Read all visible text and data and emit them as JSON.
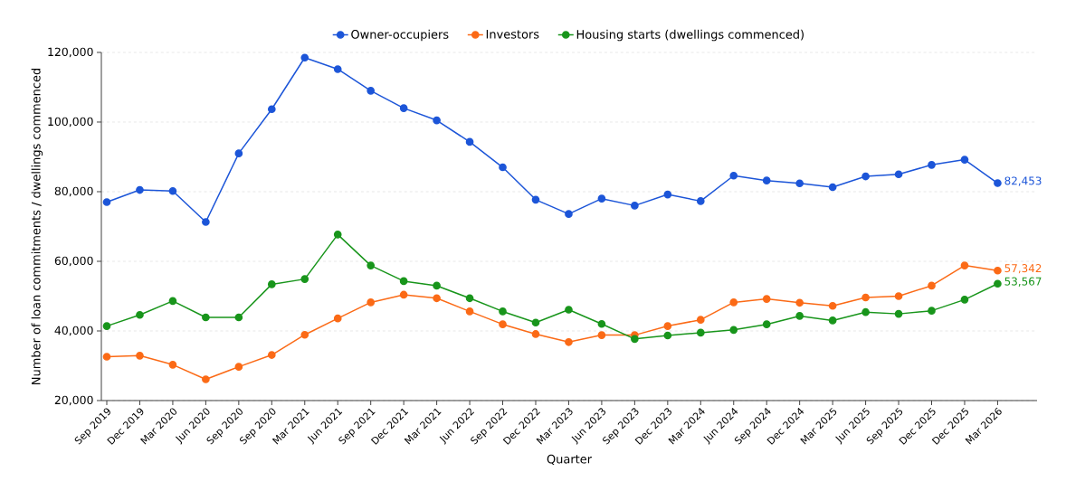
{
  "chart_data": {
    "type": "line",
    "xlabel": "Quarter",
    "ylabel": "Number of loan commitments / dwellings commenced",
    "categories": [
      "Sep 2019",
      "Dec 2019",
      "Mar 2020",
      "Jun 2020",
      "Sep 2020",
      "Sep 2020",
      "Mar 2021",
      "Jun 2021",
      "Sep 2021",
      "Dec 2021",
      "Mar 2021",
      "Jun 2022",
      "Sep 2022",
      "Dec 2022",
      "Mar 2023",
      "Jun 2023",
      "Sep 2023",
      "Dec 2023",
      "Mar 2024",
      "Jun 2024",
      "Sep 2024",
      "Dec 2024",
      "Mar 2025",
      "Jun 2025",
      "Sep 2025",
      "Dec 2025",
      "Dec 2025",
      "Mar 2026"
    ],
    "series": [
      {
        "name": "Owner-occupiers",
        "color": "#1c55d8",
        "values": [
          77000,
          80500,
          80200,
          71300,
          91000,
          103700,
          118500,
          115200,
          109000,
          104000,
          100500,
          94300,
          87000,
          77700,
          73600,
          78000,
          76000,
          79200,
          77300,
          84600,
          83200,
          82400,
          81300,
          84400,
          85000,
          87700,
          89200,
          82453
        ],
        "value_labels": [
          null,
          null,
          null,
          null,
          null,
          null,
          null,
          null,
          null,
          null,
          null,
          null,
          null,
          null,
          null,
          null,
          null,
          null,
          null,
          null,
          null,
          null,
          null,
          null,
          null,
          null,
          null,
          "82,453"
        ]
      },
      {
        "name": "Investors",
        "color": "#fb6a16",
        "values": [
          32600,
          32900,
          30300,
          26100,
          29700,
          33100,
          38900,
          43600,
          48200,
          50400,
          49400,
          45600,
          41900,
          39100,
          36800,
          38800,
          38800,
          41400,
          43200,
          48200,
          49200,
          48100,
          47200,
          49600,
          50000,
          53000,
          58800,
          57342
        ],
        "value_labels": [
          null,
          null,
          null,
          null,
          null,
          null,
          null,
          null,
          null,
          null,
          null,
          null,
          null,
          null,
          null,
          null,
          null,
          null,
          null,
          null,
          null,
          null,
          null,
          null,
          null,
          null,
          null,
          "57,342"
        ]
      },
      {
        "name": "Housing starts (dwellings commenced)",
        "color": "#18951b",
        "values": [
          41400,
          44600,
          48600,
          43900,
          43900,
          53400,
          54900,
          67700,
          58800,
          54300,
          53000,
          49400,
          45600,
          42400,
          46100,
          42000,
          37700,
          38700,
          39500,
          40300,
          41900,
          44300,
          43000,
          45400,
          44900,
          45800,
          49000,
          53567
        ],
        "value_labels": [
          null,
          null,
          null,
          null,
          null,
          null,
          null,
          null,
          null,
          null,
          null,
          null,
          null,
          null,
          null,
          null,
          null,
          null,
          null,
          null,
          null,
          null,
          null,
          null,
          null,
          null,
          null,
          "53,567"
        ]
      }
    ],
    "ylim": [
      20000,
      120000
    ],
    "yticks": [
      {
        "value": 20000,
        "label": "20,000"
      },
      {
        "value": 40000,
        "label": "40,000"
      },
      {
        "value": 60000,
        "label": "60,000"
      },
      {
        "value": 80000,
        "label": "80,000"
      },
      {
        "value": 100000,
        "label": "100,000"
      },
      {
        "value": 120000,
        "label": "120,000"
      }
    ],
    "grid": "y",
    "legend": "top",
    "marker": "circle",
    "line_style": "solid"
  }
}
